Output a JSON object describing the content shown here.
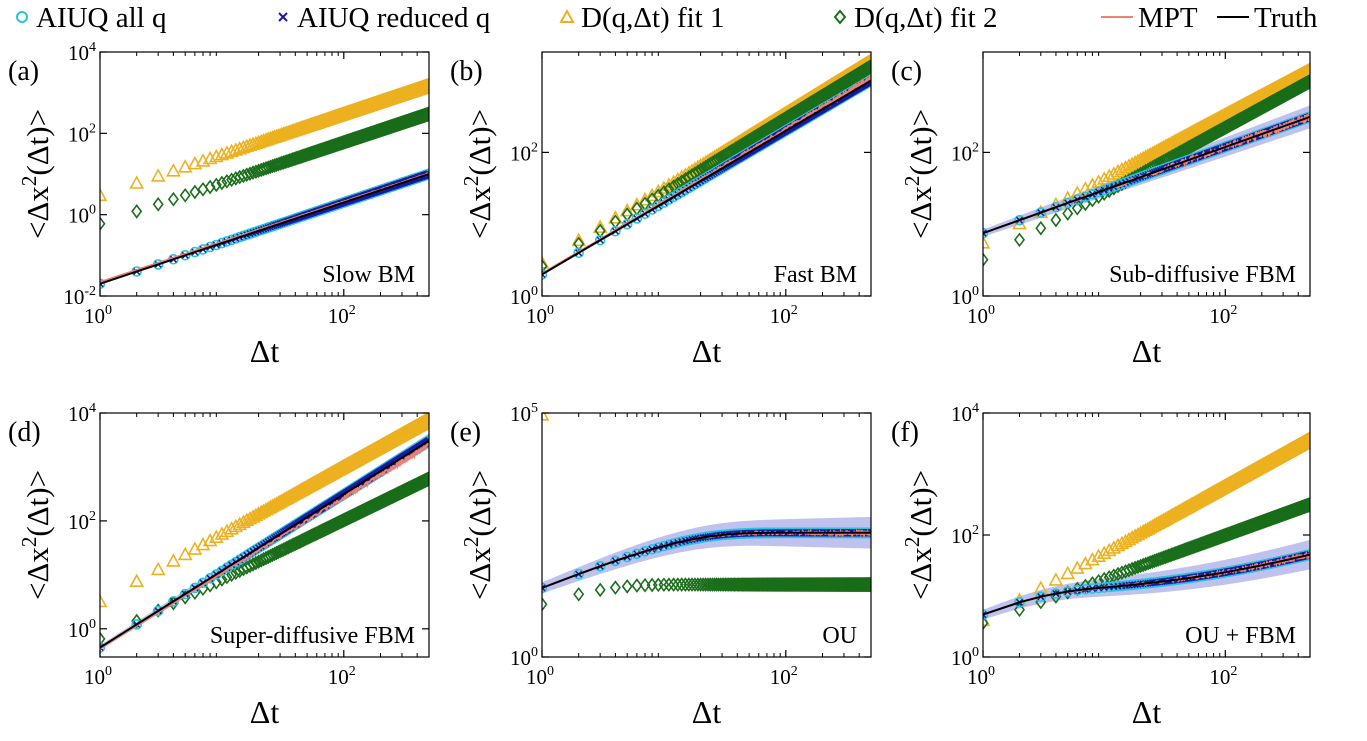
{
  "legend": {
    "placement": "top",
    "entries": [
      {
        "label": "AIUQ all q",
        "marker": "circle",
        "color": "#26c6da"
      },
      {
        "label": "AIUQ reduced q",
        "marker": "x",
        "color": "#1a1aa6"
      },
      {
        "label": "D(q,Δt) fit 1",
        "marker": "triangle",
        "color": "#edb120"
      },
      {
        "label": "D(q,Δt) fit 2",
        "marker": "diamond",
        "color": "#1b6e1b"
      },
      {
        "label": "MPT",
        "marker": "line",
        "color": "#f08070"
      },
      {
        "label": "Truth",
        "marker": "line",
        "color": "#000000"
      }
    ]
  },
  "colors": {
    "aiuq_all": "#26c6da",
    "aiuq_reduced": "#1a1aa6",
    "fit1": "#edb120",
    "fit2": "#1b6e1b",
    "mpt": "#f08070",
    "truth": "#000000",
    "band": "#8a8ee0"
  },
  "chart_data": [
    {
      "type": "scatter",
      "panel": "(a)",
      "annotation": "Slow BM",
      "xlabel": "Δt",
      "ylabel": "<Δx²(Δt)>",
      "xscale": "log",
      "yscale": "log",
      "xlim": [
        1,
        500
      ],
      "ylim": [
        0.01,
        10000
      ],
      "xticks": [
        {
          "v": 1,
          "m": "10",
          "e": "0"
        },
        {
          "v": 100,
          "m": "10",
          "e": "2"
        }
      ],
      "yticks": [
        {
          "v": 0.01,
          "m": "10",
          "e": "-2"
        },
        {
          "v": 1,
          "m": "10",
          "e": "0"
        },
        {
          "v": 100,
          "m": "10",
          "e": "2"
        },
        {
          "v": 10000,
          "m": "10",
          "e": "4"
        }
      ],
      "truth": {
        "model": "power",
        "a": 0.02,
        "b": 1.0
      },
      "aiuq": {
        "model": "power",
        "a": 0.02,
        "b": 1.0
      },
      "fit1": {
        "model": "power",
        "a": 3.0,
        "b": 1.0
      },
      "fit2": {
        "model": "power",
        "a": 0.6,
        "b": 1.0
      },
      "mpt": {
        "model": "power",
        "a": 0.022,
        "b": 0.99,
        "noise": 0.02
      },
      "band": 0.04
    },
    {
      "type": "scatter",
      "panel": "(b)",
      "annotation": "Fast BM",
      "xlabel": "Δt",
      "ylabel": "<Δx²(Δt)>",
      "xscale": "log",
      "yscale": "log",
      "xlim": [
        1,
        500
      ],
      "ylim": [
        1,
        2500
      ],
      "xticks": [
        {
          "v": 1,
          "m": "10",
          "e": "0"
        },
        {
          "v": 100,
          "m": "10",
          "e": "2"
        }
      ],
      "yticks": [
        {
          "v": 1,
          "m": "10",
          "e": "0"
        },
        {
          "v": 100,
          "m": "10",
          "e": "2"
        }
      ],
      "truth": {
        "model": "power",
        "a": 2.0,
        "b": 1.0
      },
      "aiuq": {
        "model": "power",
        "a": 2.0,
        "b": 1.0
      },
      "fit1": {
        "model": "power",
        "a": 2.9,
        "b": 1.04
      },
      "fit2": {
        "model": "power",
        "a": 2.6,
        "b": 1.03
      },
      "mpt": {
        "model": "power",
        "a": 2.05,
        "b": 1.01,
        "noise": 0.06
      },
      "band": 0.04
    },
    {
      "type": "scatter",
      "panel": "(c)",
      "annotation": "Sub-diffusive FBM",
      "xlabel": "Δt",
      "ylabel": "<Δx²(Δt)>",
      "xscale": "log",
      "yscale": "log",
      "xlim": [
        1,
        500
      ],
      "ylim": [
        1,
        2500
      ],
      "xticks": [
        {
          "v": 1,
          "m": "10",
          "e": "0"
        },
        {
          "v": 100,
          "m": "10",
          "e": "2"
        }
      ],
      "yticks": [
        {
          "v": 1,
          "m": "10",
          "e": "0"
        },
        {
          "v": 100,
          "m": "10",
          "e": "2"
        }
      ],
      "truth": {
        "model": "power",
        "a": 7.5,
        "b": 0.6
      },
      "aiuq": {
        "model": "power",
        "a": 7.5,
        "b": 0.6
      },
      "fit1": {
        "model": "power",
        "a": 5.5,
        "b": 0.89
      },
      "fit2": {
        "model": "power",
        "a": 3.2,
        "b": 0.92
      },
      "mpt": {
        "model": "power",
        "a": 7.5,
        "b": 0.6,
        "noise": 0.14
      },
      "band": 0.12
    },
    {
      "type": "scatter",
      "panel": "(d)",
      "annotation": "Super-diffusive FBM",
      "xlabel": "Δt",
      "ylabel": "<Δx²(Δt)>",
      "xscale": "log",
      "yscale": "log",
      "xlim": [
        1,
        500
      ],
      "ylim": [
        0.3,
        10000
      ],
      "xticks": [
        {
          "v": 1,
          "m": "10",
          "e": "0"
        },
        {
          "v": 100,
          "m": "10",
          "e": "2"
        }
      ],
      "yticks": [
        {
          "v": 1,
          "m": "10",
          "e": "0"
        },
        {
          "v": 100,
          "m": "10",
          "e": "2"
        },
        {
          "v": 10000,
          "m": "10",
          "e": "4"
        }
      ],
      "truth": {
        "model": "power",
        "a": 0.45,
        "b": 1.42
      },
      "aiuq": {
        "model": "power",
        "a": 0.45,
        "b": 1.42
      },
      "fit1": {
        "model": "power",
        "a": 3.2,
        "b": 1.25
      },
      "fit2": {
        "model": "power",
        "a": 0.65,
        "b": 1.1
      },
      "mpt": {
        "model": "power",
        "a": 0.43,
        "b": 1.4,
        "noise": 0.1
      },
      "band": 0.1
    },
    {
      "type": "scatter",
      "panel": "(e)",
      "annotation": "OU",
      "xlabel": "Δt",
      "ylabel": "<Δx²(Δt)>",
      "xscale": "log",
      "yscale": "log",
      "xlim": [
        1,
        500
      ],
      "ylim": [
        1,
        100000
      ],
      "xticks": [
        {
          "v": 1,
          "m": "10",
          "e": "0"
        },
        {
          "v": 100,
          "m": "10",
          "e": "2"
        }
      ],
      "yticks": [
        {
          "v": 1,
          "m": "10",
          "e": "0"
        },
        {
          "v": 100000,
          "m": "10",
          "e": "5"
        }
      ],
      "truth": {
        "model": "ou",
        "plateau": 26,
        "tau": 13
      },
      "aiuq": {
        "model": "ou",
        "plateau": 26,
        "tau": 13
      },
      "fit1": {
        "model": "ou",
        "plateau": 92000,
        "tau": 2
      },
      "fit2": {
        "model": "ou",
        "plateau": 12,
        "tau": 2
      },
      "mpt": {
        "model": "ou",
        "plateau": 26,
        "tau": 13,
        "noise": 0.1
      },
      "band": 0.3
    },
    {
      "type": "scatter",
      "panel": "(f)",
      "annotation": "OU + FBM",
      "xlabel": "Δt",
      "ylabel": "<Δx²(Δt)>",
      "xscale": "log",
      "yscale": "log",
      "xlim": [
        1,
        500
      ],
      "ylim": [
        1,
        10000
      ],
      "xticks": [
        {
          "v": 1,
          "m": "10",
          "e": "0"
        },
        {
          "v": 100,
          "m": "10",
          "e": "2"
        }
      ],
      "yticks": [
        {
          "v": 1,
          "m": "10",
          "e": "0"
        },
        {
          "v": 100,
          "m": "10",
          "e": "2"
        },
        {
          "v": 10000,
          "m": "10",
          "e": "4"
        }
      ],
      "truth": {
        "model": "oufbm",
        "plateau": 9,
        "tau": 2,
        "c": 0.9,
        "b": 0.6
      },
      "aiuq": {
        "model": "oufbm",
        "plateau": 9,
        "tau": 2,
        "c": 0.9,
        "b": 0.6
      },
      "fit1": {
        "model": "power",
        "a": 4.0,
        "b": 1.1
      },
      "fit2": {
        "model": "power",
        "a": 3.6,
        "b": 0.72
      },
      "mpt": {
        "model": "oufbm",
        "plateau": 9,
        "tau": 2,
        "c": 0.9,
        "b": 0.6,
        "noise": 0.1
      },
      "band": 0.2
    }
  ]
}
